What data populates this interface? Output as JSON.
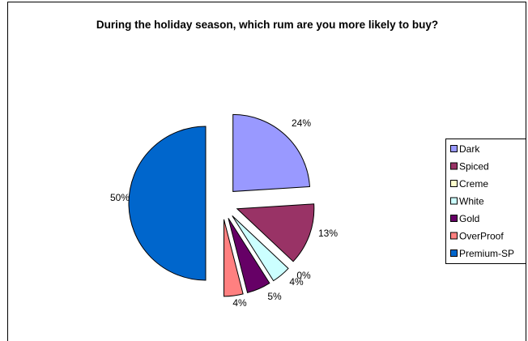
{
  "chart_data": {
    "type": "pie",
    "title": "During the holiday season, which rum are you more likely to buy?",
    "slices": [
      {
        "label": "Dark",
        "value": 24,
        "value_label": "24%",
        "color": "#9999ff"
      },
      {
        "label": "Spiced",
        "value": 13,
        "value_label": "13%",
        "color": "#993366"
      },
      {
        "label": "Creme",
        "value": 0,
        "value_label": "0%",
        "color": "#ffffcc"
      },
      {
        "label": "White",
        "value": 4,
        "value_label": "4%",
        "color": "#ccffff"
      },
      {
        "label": "Gold",
        "value": 5,
        "value_label": "5%",
        "color": "#660066"
      },
      {
        "label": "OverProof",
        "value": 4,
        "value_label": "4%",
        "color": "#ff8080"
      },
      {
        "label": "Premium-SP",
        "value": 50,
        "value_label": "50%",
        "color": "#0066cc"
      }
    ],
    "exploded": true,
    "legend": "right"
  }
}
